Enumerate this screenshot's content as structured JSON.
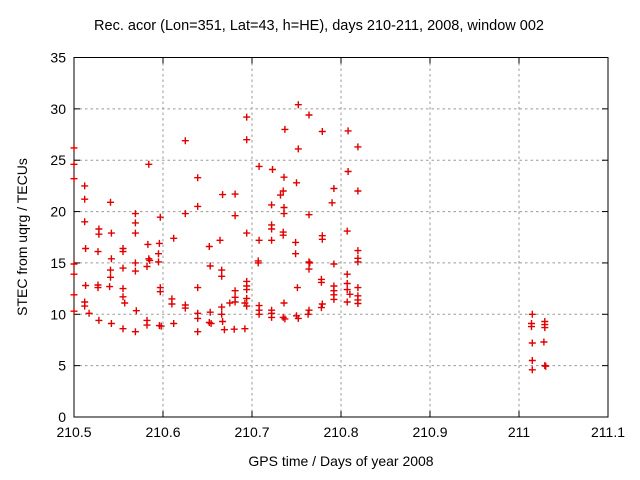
{
  "colors": {
    "background": "#ffffff",
    "border": "#000000",
    "grid": "#999999",
    "marker": "#e00000",
    "text": "#000000"
  },
  "chart_data": {
    "type": "scatter",
    "title": "Rec. acor (Lon=351, Lat=43, h=HE), days 210-211, 2008, window 002",
    "xlabel": "GPS time / Days of year 2008",
    "ylabel": "STEC from uqrg / TECUs",
    "xlim": [
      210.5,
      211.1
    ],
    "ylim": [
      0,
      35
    ],
    "xticks": {
      "values": [
        210.5,
        210.6,
        210.7,
        210.8,
        210.9,
        211.0,
        211.1
      ],
      "labels": [
        "210.5",
        "210.6",
        "210.7",
        "210.8",
        "210.9",
        "211",
        "211.1"
      ]
    },
    "yticks": {
      "values": [
        0,
        5,
        10,
        15,
        20,
        25,
        30,
        35
      ],
      "labels": [
        "0",
        "5",
        "10",
        "15",
        "20",
        "25",
        "30",
        "35"
      ]
    },
    "grid": true,
    "legend_position": "none",
    "marker": {
      "shape": "plus",
      "color": "#e00000",
      "size": 7
    },
    "series": [
      {
        "name": "STEC from uqrg",
        "points": [
          [
            210.5,
            26.2
          ],
          [
            210.5,
            24.6
          ],
          [
            210.5,
            23.2
          ],
          [
            210.5,
            14.9
          ],
          [
            210.5,
            13.9
          ],
          [
            210.5,
            11.9
          ],
          [
            210.5,
            10.3
          ],
          [
            210.512,
            22.5
          ],
          [
            210.512,
            21.2
          ],
          [
            210.512,
            19.0
          ],
          [
            210.513,
            16.4
          ],
          [
            210.513,
            12.8
          ],
          [
            210.512,
            11.2
          ],
          [
            210.512,
            10.8
          ],
          [
            210.517,
            10.1
          ],
          [
            210.528,
            18.3
          ],
          [
            210.528,
            17.8
          ],
          [
            210.527,
            16.1
          ],
          [
            210.527,
            12.85
          ],
          [
            210.527,
            12.6
          ],
          [
            210.528,
            9.4
          ],
          [
            210.541,
            20.9
          ],
          [
            210.542,
            17.9
          ],
          [
            210.542,
            15.4
          ],
          [
            210.541,
            14.3
          ],
          [
            210.541,
            13.6
          ],
          [
            210.54,
            12.7
          ],
          [
            210.542,
            9.1
          ],
          [
            210.555,
            16.4
          ],
          [
            210.555,
            16.1
          ],
          [
            210.555,
            14.5
          ],
          [
            210.555,
            12.5
          ],
          [
            210.555,
            11.7
          ],
          [
            210.557,
            11.1
          ],
          [
            210.555,
            8.6
          ],
          [
            210.569,
            19.8
          ],
          [
            210.569,
            18.9
          ],
          [
            210.569,
            17.9
          ],
          [
            210.569,
            15.0
          ],
          [
            210.569,
            14.2
          ],
          [
            210.57,
            10.35
          ],
          [
            210.569,
            8.3
          ],
          [
            210.584,
            24.6
          ],
          [
            210.583,
            16.8
          ],
          [
            210.584,
            15.4
          ],
          [
            210.585,
            15.25
          ],
          [
            210.582,
            14.65
          ],
          [
            210.582,
            9.4
          ],
          [
            210.582,
            8.95
          ],
          [
            210.597,
            19.45
          ],
          [
            210.596,
            16.9
          ],
          [
            210.595,
            15.9
          ],
          [
            210.595,
            15.1
          ],
          [
            210.597,
            12.6
          ],
          [
            210.597,
            12.2
          ],
          [
            210.596,
            8.9
          ],
          [
            210.598,
            8.85
          ],
          [
            210.612,
            17.4
          ],
          [
            210.61,
            11.5
          ],
          [
            210.61,
            11.0
          ],
          [
            210.612,
            9.1
          ],
          [
            210.625,
            26.9
          ],
          [
            210.625,
            19.8
          ],
          [
            210.625,
            10.9
          ],
          [
            210.625,
            10.6
          ],
          [
            210.639,
            23.3
          ],
          [
            210.639,
            20.5
          ],
          [
            210.639,
            12.6
          ],
          [
            210.639,
            10.1
          ],
          [
            210.639,
            9.6
          ],
          [
            210.639,
            8.3
          ],
          [
            210.652,
            16.6
          ],
          [
            210.653,
            14.7
          ],
          [
            210.653,
            10.2
          ],
          [
            210.652,
            9.2
          ],
          [
            210.654,
            9.1
          ],
          [
            210.667,
            21.65
          ],
          [
            210.664,
            17.2
          ],
          [
            210.666,
            14.3
          ],
          [
            210.666,
            13.7
          ],
          [
            210.666,
            10.7
          ],
          [
            210.666,
            10.0
          ],
          [
            210.667,
            9.3
          ],
          [
            210.669,
            8.5
          ],
          [
            210.675,
            11.1
          ],
          [
            210.68,
            8.55
          ],
          [
            210.681,
            21.7
          ],
          [
            210.681,
            19.6
          ],
          [
            210.681,
            12.3
          ],
          [
            210.681,
            11.65
          ],
          [
            210.681,
            11.2
          ],
          [
            210.692,
            11.1
          ],
          [
            210.692,
            8.6
          ],
          [
            210.694,
            29.2
          ],
          [
            210.694,
            27.0
          ],
          [
            210.694,
            17.9
          ],
          [
            210.694,
            13.2
          ],
          [
            210.694,
            12.75
          ],
          [
            210.694,
            12.4
          ],
          [
            210.694,
            11.55
          ],
          [
            210.694,
            10.8
          ],
          [
            210.708,
            24.4
          ],
          [
            210.708,
            17.2
          ],
          [
            210.707,
            15.2
          ],
          [
            210.707,
            15.0
          ],
          [
            210.708,
            10.85
          ],
          [
            210.708,
            10.4
          ],
          [
            210.708,
            10.0
          ],
          [
            210.723,
            24.1
          ],
          [
            210.722,
            20.65
          ],
          [
            210.722,
            18.7
          ],
          [
            210.722,
            18.3
          ],
          [
            210.722,
            17.2
          ],
          [
            210.722,
            10.4
          ],
          [
            210.722,
            10.1
          ],
          [
            210.722,
            9.7
          ],
          [
            210.737,
            28.0
          ],
          [
            210.736,
            23.35
          ],
          [
            210.735,
            22.0
          ],
          [
            210.732,
            21.6
          ],
          [
            210.736,
            20.4
          ],
          [
            210.736,
            19.8
          ],
          [
            210.735,
            18.0
          ],
          [
            210.735,
            17.7
          ],
          [
            210.736,
            11.1
          ],
          [
            210.735,
            9.7
          ],
          [
            210.737,
            9.55
          ],
          [
            210.752,
            30.4
          ],
          [
            210.752,
            26.1
          ],
          [
            210.75,
            22.8
          ],
          [
            210.749,
            17.0
          ],
          [
            210.749,
            15.9
          ],
          [
            210.751,
            12.6
          ],
          [
            210.75,
            9.85
          ],
          [
            210.752,
            9.6
          ],
          [
            210.764,
            29.4
          ],
          [
            210.764,
            19.7
          ],
          [
            210.764,
            15.1
          ],
          [
            210.765,
            15.0
          ],
          [
            210.764,
            14.4
          ],
          [
            210.764,
            10.4
          ],
          [
            210.763,
            10.0
          ],
          [
            210.779,
            27.8
          ],
          [
            210.779,
            17.65
          ],
          [
            210.779,
            17.3
          ],
          [
            210.778,
            13.4
          ],
          [
            210.778,
            13.1
          ],
          [
            210.779,
            11.0
          ],
          [
            210.778,
            10.65
          ],
          [
            210.792,
            22.25
          ],
          [
            210.79,
            20.85
          ],
          [
            210.792,
            14.9
          ],
          [
            210.792,
            12.75
          ],
          [
            210.792,
            12.3
          ],
          [
            210.792,
            11.9
          ],
          [
            210.792,
            11.45
          ],
          [
            210.808,
            27.85
          ],
          [
            210.808,
            23.9
          ],
          [
            210.807,
            18.1
          ],
          [
            210.807,
            13.9
          ],
          [
            210.807,
            13.0
          ],
          [
            210.807,
            12.4
          ],
          [
            210.81,
            11.95
          ],
          [
            210.807,
            11.2
          ],
          [
            210.819,
            26.3
          ],
          [
            210.819,
            22.0
          ],
          [
            210.819,
            16.2
          ],
          [
            210.819,
            15.45
          ],
          [
            210.819,
            15.1
          ],
          [
            210.819,
            12.6
          ],
          [
            210.819,
            11.8
          ],
          [
            210.819,
            11.4
          ],
          [
            210.819,
            11.05
          ],
          [
            211.015,
            10.0
          ],
          [
            211.014,
            9.1
          ],
          [
            211.014,
            8.8
          ],
          [
            211.015,
            7.2
          ],
          [
            211.015,
            5.5
          ],
          [
            211.015,
            4.6
          ],
          [
            211.028,
            7.3
          ],
          [
            211.029,
            9.3
          ],
          [
            211.029,
            9.0
          ],
          [
            211.029,
            8.7
          ],
          [
            211.029,
            5.0
          ],
          [
            211.03,
            4.95
          ]
        ]
      }
    ]
  }
}
